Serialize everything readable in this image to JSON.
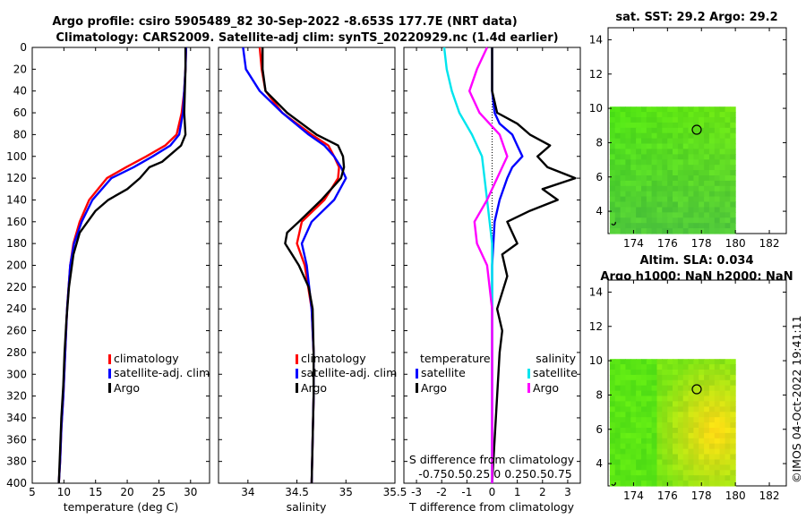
{
  "title": {
    "line1": "Argo profile: csiro 5905489_82 30-Sep-2022 -8.653S 177.7E (NRT data)",
    "line2": "Climatology: CARS2009. Satellite-adj clim: synTS_20220929.nc (1.4d earlier)"
  },
  "watermark": "©IMOS 04-Oct-2022 19:41:11",
  "colors": {
    "climatology": "#ff0000",
    "satellite": "#0000ff",
    "argo": "#000000",
    "sal_satellite": "#00e5ee",
    "sal_argo": "#ff00ff"
  },
  "chart_data": [
    {
      "id": "temperature",
      "type": "line",
      "xlabel": "temperature (deg C)",
      "xlim": [
        5,
        33
      ],
      "xticks": [
        5,
        10,
        15,
        20,
        25,
        30
      ],
      "ylim": [
        0,
        400
      ],
      "yticks": [
        0,
        20,
        40,
        60,
        80,
        100,
        120,
        140,
        160,
        180,
        200,
        220,
        240,
        260,
        280,
        300,
        320,
        340,
        360,
        380,
        400
      ],
      "legend": [
        "climatology",
        "satellite-adj. clim",
        "Argo"
      ],
      "series": [
        {
          "name": "climatology",
          "color": "#ff0000",
          "x": [
            29.3,
            29.2,
            29.0,
            28.6,
            27.8,
            26.0,
            23.0,
            19.8,
            16.8,
            14.0,
            12.5,
            11.5,
            11.0,
            10.5,
            10.2,
            9.9,
            9.6,
            9.4,
            9.2
          ],
          "y": [
            0,
            20,
            40,
            60,
            80,
            90,
            100,
            110,
            120,
            140,
            160,
            180,
            200,
            240,
            280,
            320,
            350,
            380,
            400
          ]
        },
        {
          "name": "satellite-adj. clim",
          "color": "#0000ff",
          "x": [
            29.3,
            29.2,
            29.0,
            28.8,
            28.2,
            26.8,
            24.0,
            21.0,
            17.5,
            14.5,
            12.8,
            11.6,
            11.0,
            10.5,
            10.2,
            9.9,
            9.6,
            9.4,
            9.2
          ],
          "y": [
            0,
            20,
            40,
            60,
            80,
            90,
            100,
            110,
            120,
            140,
            160,
            180,
            200,
            240,
            280,
            320,
            350,
            380,
            400
          ]
        },
        {
          "name": "Argo",
          "color": "#000000",
          "x": [
            29.2,
            29.2,
            29.1,
            29.0,
            29.2,
            28.5,
            26.5,
            25.5,
            23.5,
            22.0,
            20.0,
            17.0,
            15.0,
            12.5,
            11.5,
            10.8,
            10.4,
            10.1,
            9.9,
            9.6,
            9.4,
            9.2
          ],
          "y": [
            0,
            20,
            40,
            60,
            80,
            90,
            100,
            105,
            110,
            120,
            130,
            140,
            150,
            170,
            190,
            220,
            250,
            280,
            310,
            340,
            370,
            400
          ]
        }
      ]
    },
    {
      "id": "salinity",
      "type": "line",
      "xlabel": "salinity",
      "xlim": [
        33.7,
        35.5
      ],
      "xticks": [
        34,
        34.5,
        35,
        35.5
      ],
      "ylim": [
        0,
        400
      ],
      "legend": [
        "climatology",
        "satellite-adj. clim",
        "Argo"
      ],
      "series": [
        {
          "name": "climatology",
          "color": "#ff0000",
          "x": [
            34.12,
            34.14,
            34.18,
            34.35,
            34.65,
            34.82,
            34.88,
            34.93,
            34.92,
            34.78,
            34.55,
            34.5,
            34.58,
            34.65,
            34.67,
            34.67,
            34.66,
            34.65
          ],
          "y": [
            0,
            20,
            40,
            60,
            80,
            90,
            100,
            110,
            120,
            140,
            160,
            180,
            200,
            240,
            280,
            320,
            360,
            400
          ]
        },
        {
          "name": "satellite-adj. clim",
          "color": "#0000ff",
          "x": [
            33.95,
            33.98,
            34.12,
            34.35,
            34.62,
            34.78,
            34.88,
            34.95,
            35.0,
            34.88,
            34.65,
            34.55,
            34.6,
            34.65,
            34.67,
            34.67,
            34.66,
            34.65
          ],
          "y": [
            0,
            20,
            40,
            60,
            80,
            90,
            100,
            110,
            120,
            140,
            160,
            180,
            200,
            240,
            280,
            320,
            360,
            400
          ]
        },
        {
          "name": "Argo",
          "color": "#000000",
          "x": [
            34.15,
            34.15,
            34.18,
            34.4,
            34.7,
            34.92,
            34.97,
            34.98,
            34.95,
            34.75,
            34.52,
            34.4,
            34.38,
            34.45,
            34.52,
            34.62,
            34.66,
            34.67,
            34.67,
            34.66,
            34.65
          ],
          "y": [
            0,
            20,
            40,
            60,
            80,
            90,
            100,
            110,
            120,
            140,
            160,
            170,
            180,
            190,
            200,
            220,
            240,
            280,
            320,
            360,
            400
          ]
        }
      ]
    },
    {
      "id": "differences",
      "type": "line",
      "xlabel": "T difference from climatology",
      "xlim": [
        -3.5,
        3.5
      ],
      "xticks": [
        -3,
        -2,
        -1,
        0,
        1,
        2,
        3
      ],
      "top_label": "S difference from climatology",
      "top_ticks": "-0.750.50.25 0 0.250.50.75",
      "ylim": [
        0,
        400
      ],
      "legend_temperature_title": "temperature",
      "legend_temperature": [
        "satellite",
        "Argo"
      ],
      "legend_salinity_title": "salinity",
      "legend_salinity": [
        "satellite",
        "Argo"
      ],
      "series": [
        {
          "name": "T satellite",
          "color": "#0000ff",
          "x": [
            0,
            0,
            0.1,
            0.3,
            0.8,
            1.0,
            1.2,
            0.8,
            0.6,
            0.3,
            0.1,
            0,
            0
          ],
          "y": [
            0,
            40,
            60,
            70,
            80,
            90,
            100,
            110,
            120,
            140,
            160,
            200,
            400
          ]
        },
        {
          "name": "T Argo",
          "color": "#000000",
          "x": [
            0,
            0,
            0.2,
            1.0,
            1.5,
            2.3,
            1.8,
            2.2,
            3.3,
            2.0,
            2.6,
            1.5,
            0.6,
            1.0,
            0.4,
            0.6,
            0.2,
            0.4,
            0.3,
            0.2,
            0.1,
            0
          ],
          "y": [
            0,
            40,
            60,
            70,
            80,
            90,
            100,
            110,
            120,
            130,
            140,
            150,
            160,
            180,
            190,
            210,
            240,
            260,
            280,
            320,
            360,
            400
          ]
        },
        {
          "name": "S satellite",
          "color": "#00e5ee",
          "x": [
            -1.9,
            -1.8,
            -1.6,
            -1.3,
            -0.8,
            -0.4,
            -0.2,
            0,
            0,
            0
          ],
          "y": [
            0,
            20,
            40,
            60,
            80,
            100,
            140,
            180,
            240,
            400
          ]
        },
        {
          "name": "S Argo",
          "color": "#ff00ff",
          "x": [
            -0.2,
            -0.6,
            -0.9,
            -0.5,
            0.3,
            0.6,
            0.2,
            -0.2,
            -0.7,
            -0.6,
            -0.2,
            0,
            0
          ],
          "y": [
            0,
            20,
            40,
            60,
            80,
            100,
            120,
            140,
            160,
            180,
            200,
            240,
            400
          ]
        }
      ]
    },
    {
      "id": "sst_map",
      "type": "heatmap",
      "title": "sat. SST: 29.2 Argo: 29.2",
      "xlim": [
        172.5,
        183
      ],
      "xticks": [
        174,
        176,
        178,
        180,
        182
      ],
      "ylim": [
        2.7,
        14.7
      ],
      "yticks": [
        4,
        6,
        8,
        10,
        12,
        14
      ],
      "grid_extent": {
        "lon": [
          172.6,
          180
        ],
        "lat": [
          2.7,
          10.1
        ]
      },
      "argo_position": {
        "lon": 177.7,
        "lat": 8.65
      }
    },
    {
      "id": "sla_map",
      "type": "heatmap",
      "title1": "Altim. SLA: 0.034",
      "title2": "Argo h1000: NaN h2000: NaN",
      "xlim": [
        172.5,
        183
      ],
      "xticks": [
        174,
        176,
        178,
        180,
        182
      ],
      "ylim": [
        2.7,
        14.7
      ],
      "yticks": [
        4,
        6,
        8,
        10,
        12,
        14
      ],
      "grid_extent": {
        "lon": [
          172.6,
          180
        ],
        "lat": [
          2.7,
          10.1
        ]
      },
      "argo_position": {
        "lon": 177.7,
        "lat": 8.65
      }
    }
  ]
}
